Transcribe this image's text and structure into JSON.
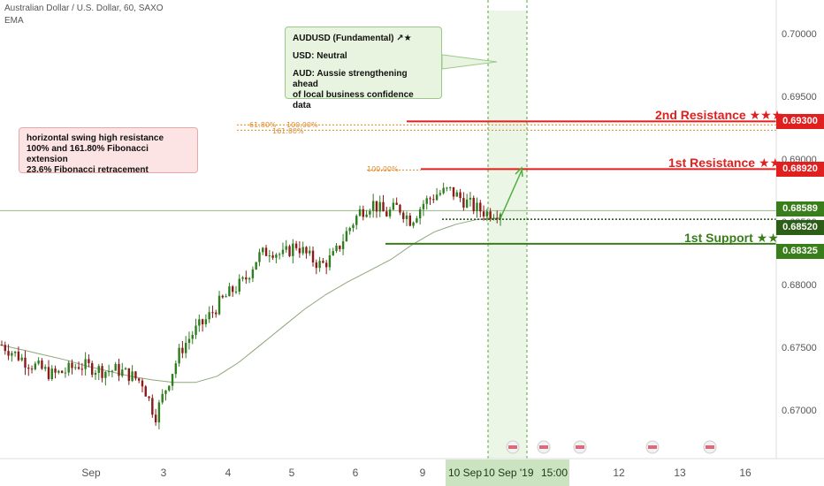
{
  "header": {
    "title": "Australian Dollar / U.S. Dollar, 60, SAXO",
    "indicator": "EMA"
  },
  "colors": {
    "resistance": "#e01f1f",
    "support": "#3a7d1b",
    "bull": "#2e7d1e",
    "bear": "#8b1a1a",
    "ema": "#8da77a",
    "fib": "#e08a2a",
    "axis_text": "#555555",
    "axis_price_current": "#3a7d1b"
  },
  "fundamental_box": {
    "title": "AUDUSD (Fundamental) ↗★",
    "usd": "USD: Neutral",
    "aud_line1": "AUD: Aussie strengthening ahead",
    "aud_line2": "of local business confidence data"
  },
  "fib_box": {
    "line1": "horizontal swing high resistance",
    "line2": "100% and 161.80% Fibonacci extension",
    "line3": "23.6% Fibonacci retracement"
  },
  "levels": {
    "resistance2": {
      "label": "2nd Resistance ★★★",
      "value": 0.693,
      "price_text": "0.69300"
    },
    "resistance1": {
      "label": "1st Resistance ★★",
      "value": 0.6892,
      "price_text": "0.68920"
    },
    "current": {
      "value": 0.68589,
      "price_text": "0.68589"
    },
    "dotted": {
      "value": 0.6852,
      "price_text": "0.68520"
    },
    "support1": {
      "label": "1st Support ★★",
      "value": 0.68325,
      "price_text": "0.68325"
    }
  },
  "fib_labels": {
    "f618": "61.80%",
    "f100a": "100.00%",
    "f1618": "161.80%",
    "f100b": "100.00%"
  },
  "chart_data": {
    "type": "candlestick",
    "y_ticks": [
      "0.70000",
      "0.69500",
      "0.69000",
      "0.68500",
      "0.68000",
      "0.67500",
      "0.67000"
    ],
    "ylim": [
      0.6655,
      0.7025
    ],
    "x_ticks": [
      "Sep",
      "3",
      "4",
      "5",
      "6",
      "9",
      "10 Sep",
      "10 Sep '19",
      "15:00",
      "12",
      "13",
      "16"
    ],
    "ema_series": [
      0.6752,
      0.6748,
      0.6744,
      0.674,
      0.6735,
      0.6731,
      0.6727,
      0.6724,
      0.6722,
      0.6722,
      0.6727,
      0.6738,
      0.6752,
      0.6766,
      0.678,
      0.6792,
      0.6802,
      0.6811,
      0.682,
      0.6832,
      0.6842,
      0.6848,
      0.6852,
      0.6853
    ],
    "candles_close_path": [
      0.6752,
      0.6745,
      0.6738,
      0.6733,
      0.6728,
      0.6731,
      0.6736,
      0.6734,
      0.6731,
      0.6732,
      0.6728,
      0.6722,
      0.6695,
      0.6722,
      0.6748,
      0.6762,
      0.6772,
      0.6785,
      0.6795,
      0.6803,
      0.6822,
      0.6828,
      0.6823,
      0.6832,
      0.6822,
      0.6815,
      0.6823,
      0.6842,
      0.6858,
      0.6865,
      0.6856,
      0.6862,
      0.6851,
      0.6865,
      0.6872,
      0.6875,
      0.6868,
      0.6861,
      0.6857,
      0.6859
    ]
  }
}
